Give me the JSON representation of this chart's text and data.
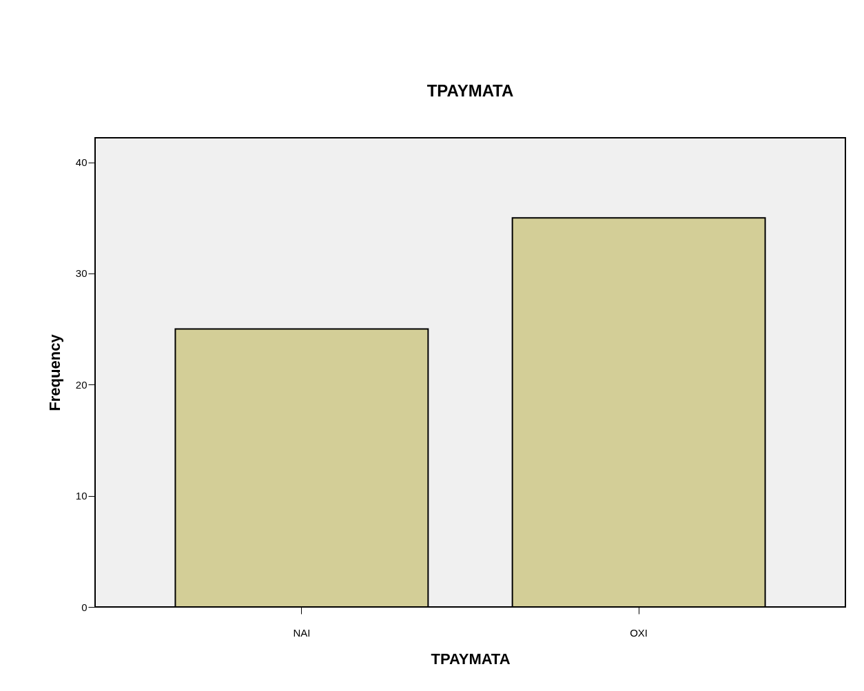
{
  "chart_data": {
    "type": "bar",
    "title": "ΤΡΑΥΜΑΤΑ",
    "xlabel": "ΤΡΑΥΜΑΤΑ",
    "ylabel": "Frequency",
    "categories": [
      "ΝΑΙ",
      "ΟΧΙ"
    ],
    "values": [
      25,
      35
    ],
    "color": "#d3ce97",
    "ylim": [
      0,
      42.2
    ],
    "yticks": [
      0,
      10,
      20,
      30,
      40
    ],
    "grid": false
  }
}
